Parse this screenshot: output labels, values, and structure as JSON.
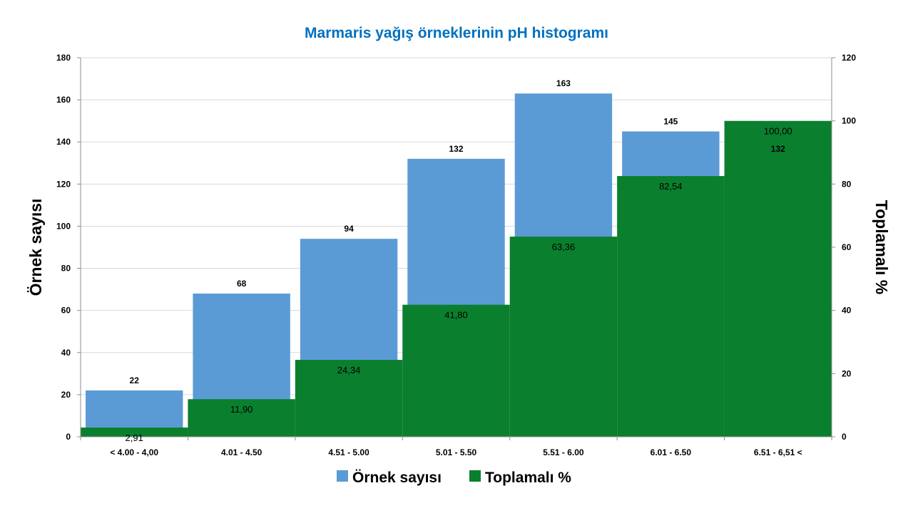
{
  "chart_data": {
    "type": "bar",
    "title": "Marmaris yağış örneklerinin pH histogramı",
    "ylabel": "Örnek sayısı",
    "y2label": "Toplamalı %",
    "categories": [
      "< 4.00 - 4,00",
      "4.01 - 4.50",
      "4.51 - 5.00",
      "5.01 - 5.50",
      "5.51 - 6.00",
      "6.01 - 6.50",
      "6.51 - 6,51 <"
    ],
    "ylim": [
      0,
      180
    ],
    "y2lim": [
      0,
      120
    ],
    "yticks": [
      "0",
      "20",
      "40",
      "60",
      "80",
      "100",
      "120",
      "140",
      "160",
      "180"
    ],
    "y2ticks": [
      "0",
      "20",
      "40",
      "60",
      "80",
      "100",
      "120"
    ],
    "grid": true,
    "legend_position": "bottom",
    "series": [
      {
        "name": "Örnek sayısı",
        "axis": "left",
        "color": "#5b9bd5",
        "values": [
          22,
          68,
          94,
          132,
          163,
          145,
          132
        ],
        "labels": [
          "22",
          "68",
          "94",
          "132",
          "163",
          "145",
          "132"
        ]
      },
      {
        "name": "Toplamalı %",
        "axis": "right",
        "color": "#0a7f2e",
        "values": [
          2.91,
          11.9,
          24.34,
          41.8,
          63.36,
          82.54,
          100.0
        ],
        "labels": [
          "2,91",
          "11,90",
          "24,34",
          "41,80",
          "63,36",
          "82,54",
          "100,00"
        ]
      }
    ],
    "title_color": "#0070c0"
  }
}
